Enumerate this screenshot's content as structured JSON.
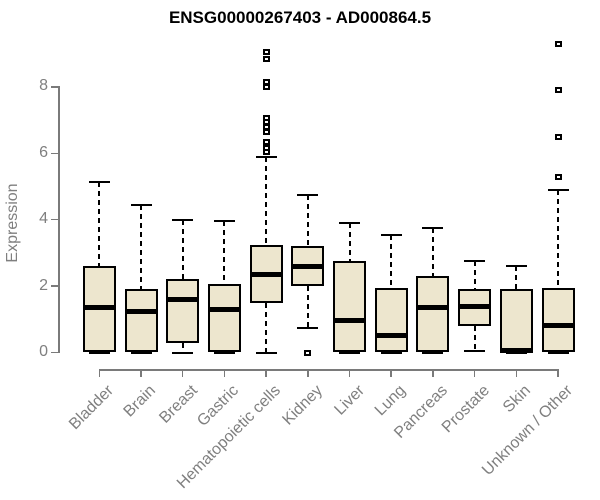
{
  "title": "ENSG00000267403 - AD000864.5",
  "colors": {
    "box_fill": "#EDE6CE",
    "box_border": "#000000",
    "axis": "#7A7A7A",
    "label_gray": "#7F7F7F",
    "title_color": "#000000",
    "background": "#FFFFFF"
  },
  "chart_data": {
    "type": "boxplot",
    "title": "ENSG00000267403 - AD000864.5",
    "xlabel": "",
    "ylabel": "Expression",
    "ylim": [
      0,
      9.5
    ],
    "yticks": [
      0,
      2,
      4,
      6,
      8
    ],
    "grid": false,
    "categories": [
      "Bladder",
      "Brain",
      "Breast",
      "Gastric",
      "Hematopoietic cells",
      "Kidney",
      "Liver",
      "Lung",
      "Pancreas",
      "Prostate",
      "Skin",
      "Unknown / Other"
    ],
    "series": [
      {
        "name": "Bladder",
        "whislo": 0,
        "q1": 0,
        "med": 1.35,
        "q3": 2.6,
        "whishi": 5.15,
        "outliers": []
      },
      {
        "name": "Brain",
        "whislo": 0,
        "q1": 0,
        "med": 1.25,
        "q3": 1.9,
        "whishi": 4.45,
        "outliers": []
      },
      {
        "name": "Breast",
        "whislo": 0,
        "q1": 0.3,
        "med": 1.6,
        "q3": 2.2,
        "whishi": 4.0,
        "outliers": []
      },
      {
        "name": "Gastric",
        "whislo": 0,
        "q1": 0,
        "med": 1.3,
        "q3": 2.05,
        "whishi": 3.95,
        "outliers": []
      },
      {
        "name": "Hematopoietic cells",
        "whislo": 0,
        "q1": 1.5,
        "med": 2.35,
        "q3": 3.25,
        "whishi": 5.9,
        "outliers": [
          6.05,
          6.15,
          6.35,
          6.65,
          6.8,
          6.95,
          7.05,
          8.0,
          8.15,
          8.85,
          9.05
        ]
      },
      {
        "name": "Kidney",
        "whislo": 0.75,
        "q1": 2.0,
        "med": 2.6,
        "q3": 3.2,
        "whishi": 4.75,
        "outliers": [
          0
        ]
      },
      {
        "name": "Liver",
        "whislo": 0,
        "q1": 0,
        "med": 0.95,
        "q3": 2.75,
        "whishi": 3.9,
        "outliers": []
      },
      {
        "name": "Lung",
        "whislo": 0,
        "q1": 0,
        "med": 0.5,
        "q3": 1.95,
        "whishi": 3.55,
        "outliers": []
      },
      {
        "name": "Pancreas",
        "whislo": 0,
        "q1": 0,
        "med": 1.35,
        "q3": 2.3,
        "whishi": 3.75,
        "outliers": []
      },
      {
        "name": "Prostate",
        "whislo": 0.05,
        "q1": 0.8,
        "med": 1.4,
        "q3": 1.9,
        "whishi": 2.75,
        "outliers": []
      },
      {
        "name": "Skin",
        "whislo": 0,
        "q1": 0,
        "med": 0.05,
        "q3": 1.9,
        "whishi": 2.6,
        "outliers": []
      },
      {
        "name": "Unknown / Other",
        "whislo": 0,
        "q1": 0,
        "med": 0.8,
        "q3": 1.95,
        "whishi": 4.9,
        "outliers": [
          5.3,
          6.5,
          7.9,
          9.3
        ]
      }
    ]
  }
}
